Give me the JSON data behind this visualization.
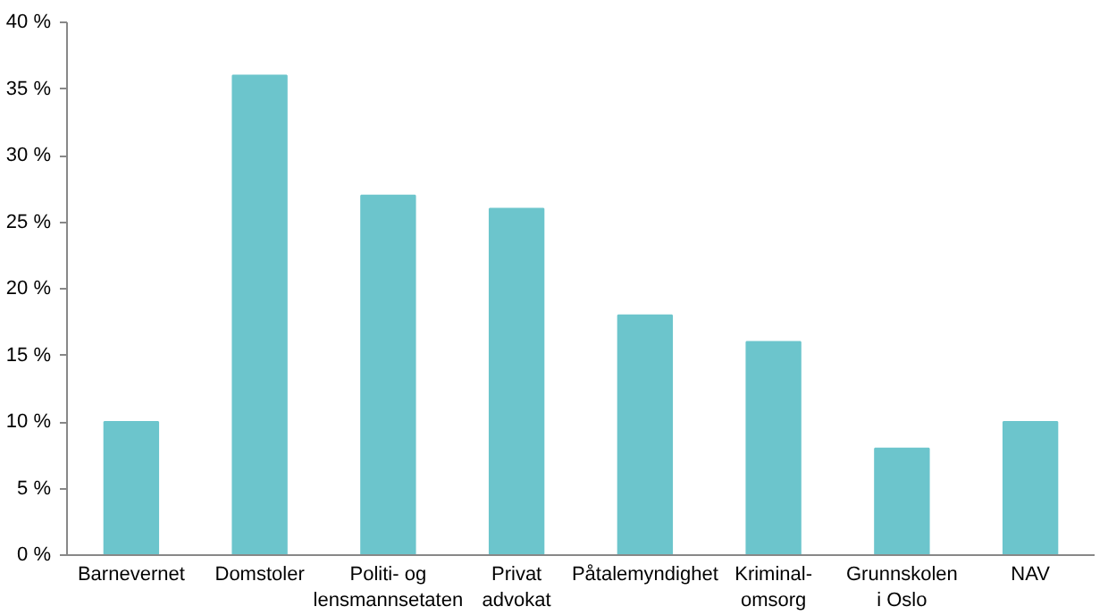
{
  "chart_data": {
    "type": "bar",
    "categories": [
      "Barnevernet",
      "Domstoler",
      "Politi- og\nlensmannsetaten",
      "Privat\nadvokat",
      "Påtalemyndighet",
      "Kriminal-\nomsorg",
      "Grunnskolen\ni Oslo",
      "NAV"
    ],
    "values": [
      10,
      36,
      27,
      26,
      18,
      16,
      8,
      10
    ],
    "color": "#6cc5cc",
    "ylim": [
      0,
      40
    ],
    "yticks": [
      {
        "value": 0,
        "label": "0 %"
      },
      {
        "value": 5,
        "label": "5 %"
      },
      {
        "value": 10,
        "label": "10 %"
      },
      {
        "value": 15,
        "label": "15 %"
      },
      {
        "value": 20,
        "label": "20 %"
      },
      {
        "value": 25,
        "label": "25 %"
      },
      {
        "value": 30,
        "label": "30 %"
      },
      {
        "value": 35,
        "label": "35 %"
      },
      {
        "value": 40,
        "label": "40 %"
      }
    ],
    "grid": false
  }
}
